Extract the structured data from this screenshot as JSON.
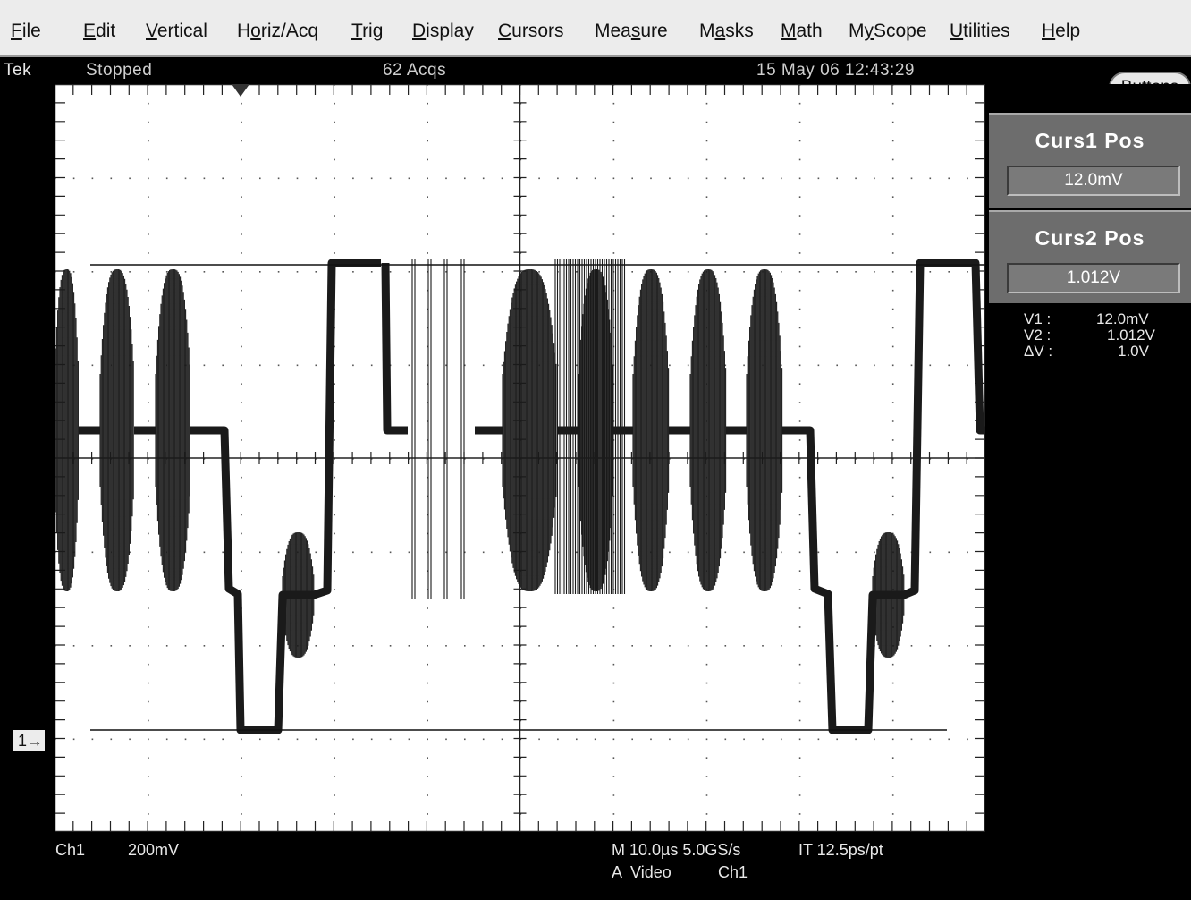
{
  "menu": [
    "File",
    "Edit",
    "Vertical",
    "Horiz/Acq",
    "Trig",
    "Display",
    "Cursors",
    "Measure",
    "Masks",
    "Math",
    "MyScope",
    "Utilities",
    "Help"
  ],
  "menu_underline": [
    "F",
    "E",
    "V",
    "o",
    "T",
    "D",
    "C",
    "s",
    "a",
    "M",
    "y",
    "U",
    "H"
  ],
  "status": {
    "brand": "Tek",
    "run_state": "Stopped",
    "acqs": "62 Acqs",
    "datetime": "15 May 06 12:43:29"
  },
  "buttons_label": "Buttons",
  "cursor1": {
    "title": "Curs1 Pos",
    "value": "12.0mV"
  },
  "cursor2": {
    "title": "Curs2 Pos",
    "value": "1.012V"
  },
  "readout": {
    "v1_label": "V1 :",
    "v1_value": "12.0mV",
    "v2_label": "V2 :",
    "v2_value": "1.012V",
    "dv_label": "ΔV :",
    "dv_value": "1.0V"
  },
  "channel": {
    "marker": "1",
    "name": "Ch1",
    "scale": "200mV"
  },
  "timebase": {
    "line1": "M 10.0µs 5.0GS/s",
    "interp": "IT 12.5ps/pt",
    "trigger_source": "A  Video",
    "trigger_channel": "Ch1"
  },
  "colors": {
    "screen_bg": "#000000",
    "graticule_bg": "#ffffff",
    "trace": "#1a1a1a",
    "panel": "#6d6d6d",
    "menubar": "#ececec"
  }
}
